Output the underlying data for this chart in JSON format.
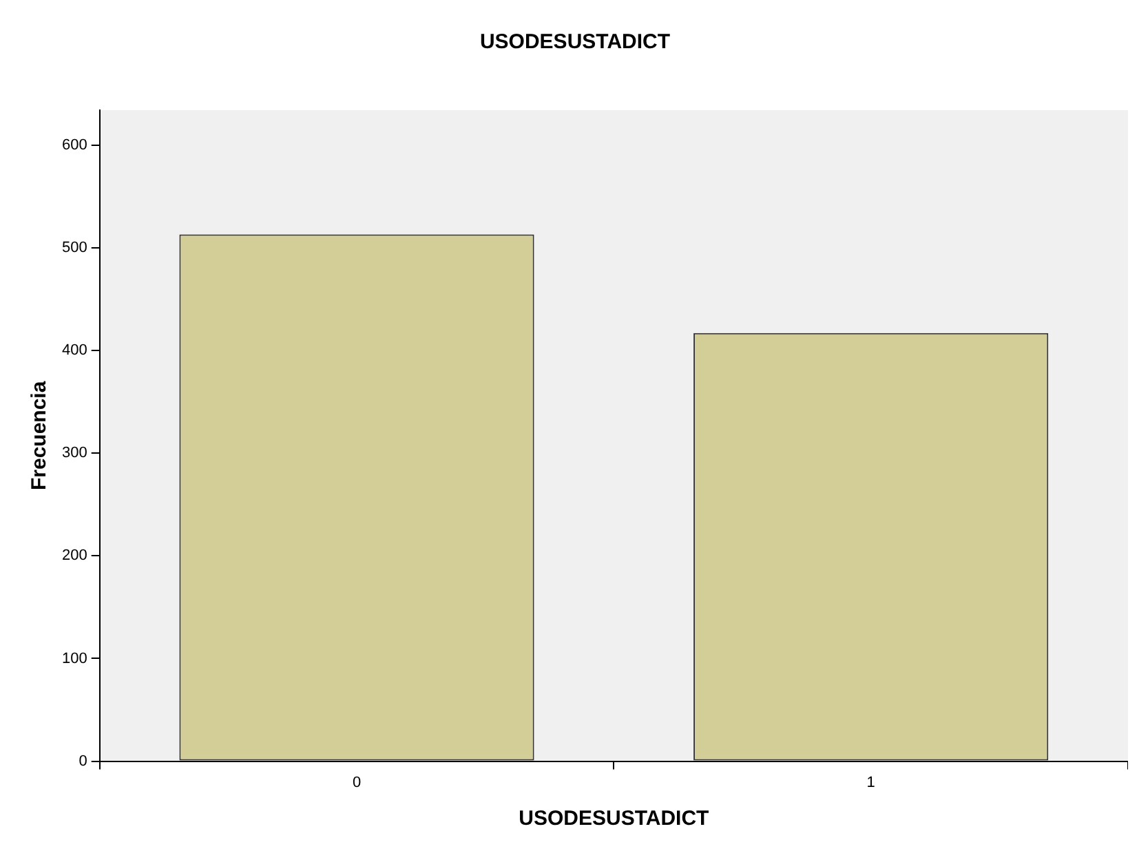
{
  "chart_data": {
    "type": "bar",
    "title": "USODESUSTADICT",
    "xlabel": "USODESUSTADICT",
    "ylabel": "Frecuencia",
    "categories": [
      "0",
      "1"
    ],
    "values": [
      513,
      417
    ],
    "color": "#d3ce97",
    "ylim": [
      0,
      634
    ],
    "yticks": [
      0,
      100,
      200,
      300,
      400,
      500,
      600
    ],
    "grid": false
  }
}
